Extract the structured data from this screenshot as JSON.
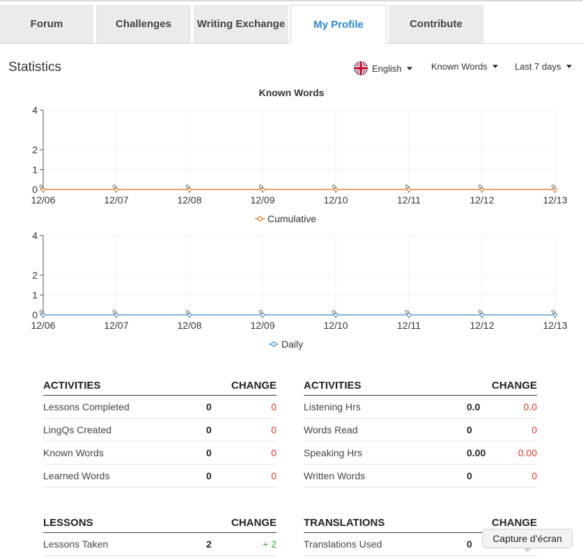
{
  "tabs": [
    {
      "label": "Forum",
      "active": false
    },
    {
      "label": "Challenges",
      "active": false
    },
    {
      "label": "Writing Exchange",
      "active": false
    },
    {
      "label": "My Profile",
      "active": true
    },
    {
      "label": "Contribute",
      "active": false
    }
  ],
  "statistics": {
    "title": "Statistics",
    "language_dropdown": "English",
    "metric_dropdown": "Known Words",
    "period_dropdown": "Last 7 days",
    "language_icon": "uk-flag-icon"
  },
  "chart_data": [
    {
      "type": "line",
      "title": "Known Words",
      "categories": [
        "12/06",
        "12/07",
        "12/08",
        "12/09",
        "12/10",
        "12/11",
        "12/12",
        "12/13"
      ],
      "series": [
        {
          "name": "Cumulative",
          "values": [
            0,
            0,
            0,
            0,
            0,
            0,
            0,
            0
          ],
          "color": "#e8833a"
        }
      ],
      "yticks": [
        0,
        1,
        2,
        4
      ],
      "ylim": [
        0,
        4
      ],
      "point_label": "0"
    },
    {
      "type": "line",
      "title": "",
      "categories": [
        "12/06",
        "12/07",
        "12/08",
        "12/09",
        "12/10",
        "12/11",
        "12/12",
        "12/13"
      ],
      "series": [
        {
          "name": "Daily",
          "values": [
            0,
            0,
            0,
            0,
            0,
            0,
            0,
            0
          ],
          "color": "#5b9bd5"
        }
      ],
      "yticks": [
        0,
        1,
        2,
        4
      ],
      "ylim": [
        0,
        4
      ],
      "point_label": "0"
    }
  ],
  "tables": {
    "activities_left": {
      "header": "ACTIVITIES",
      "change_header": "CHANGE",
      "rows": [
        {
          "label": "Lessons Completed",
          "value": "0",
          "change": "0"
        },
        {
          "label": "LingQs Created",
          "value": "0",
          "change": "0"
        },
        {
          "label": "Known Words",
          "value": "0",
          "change": "0"
        },
        {
          "label": "Learned Words",
          "value": "0",
          "change": "0"
        }
      ]
    },
    "activities_right": {
      "header": "ACTIVITIES",
      "change_header": "CHANGE",
      "rows": [
        {
          "label": "Listening Hrs",
          "value": "0.0",
          "change": "0.0"
        },
        {
          "label": "Words Read",
          "value": "0",
          "change": "0"
        },
        {
          "label": "Speaking Hrs",
          "value": "0.00",
          "change": "0.00"
        },
        {
          "label": "Written Words",
          "value": "0",
          "change": "0"
        }
      ]
    },
    "lessons": {
      "header": "LESSONS",
      "change_header": "CHANGE",
      "rows": [
        {
          "label": "Lessons Taken",
          "value": "2",
          "change": "+ 2"
        }
      ]
    },
    "translations": {
      "header": "TRANSLATIONS",
      "change_header": "CHANGE",
      "rows": [
        {
          "label": "Translations Used",
          "value": "0",
          "change": ""
        }
      ]
    }
  },
  "tooltip": {
    "text": "Capture d’écran"
  }
}
